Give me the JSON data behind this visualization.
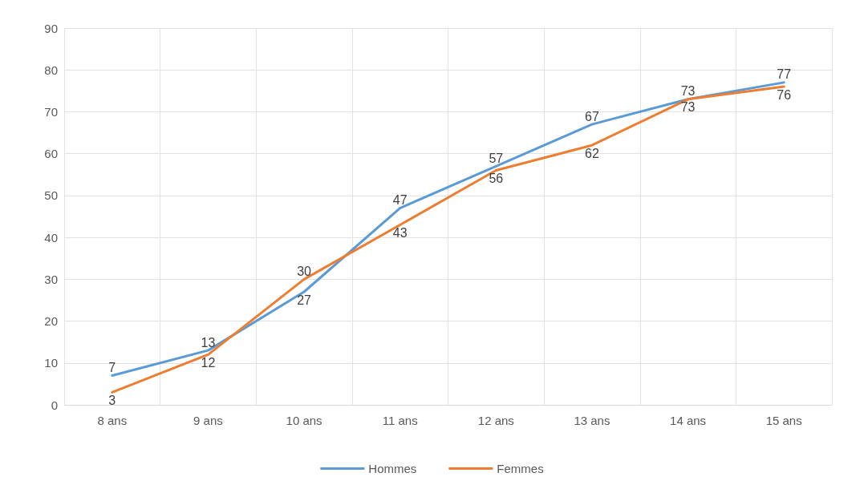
{
  "chart_data": {
    "type": "line",
    "categories": [
      "8 ans",
      "9 ans",
      "10 ans",
      "11 ans",
      "12 ans",
      "13 ans",
      "14 ans",
      "15 ans"
    ],
    "series": [
      {
        "name": "Hommes",
        "color": "#5b9bd5",
        "values": [
          7,
          13,
          27,
          47,
          57,
          67,
          73,
          77
        ]
      },
      {
        "name": "Femmes",
        "color": "#ed7d31",
        "values": [
          3,
          12,
          30,
          43,
          56,
          62,
          73,
          76
        ]
      }
    ],
    "ylim": [
      0,
      90
    ],
    "yticks": [
      0,
      10,
      20,
      30,
      40,
      50,
      60,
      70,
      80,
      90
    ],
    "grid": true,
    "legend": "bottom",
    "data_labels": true,
    "marker": "none",
    "line_style": "solid"
  }
}
